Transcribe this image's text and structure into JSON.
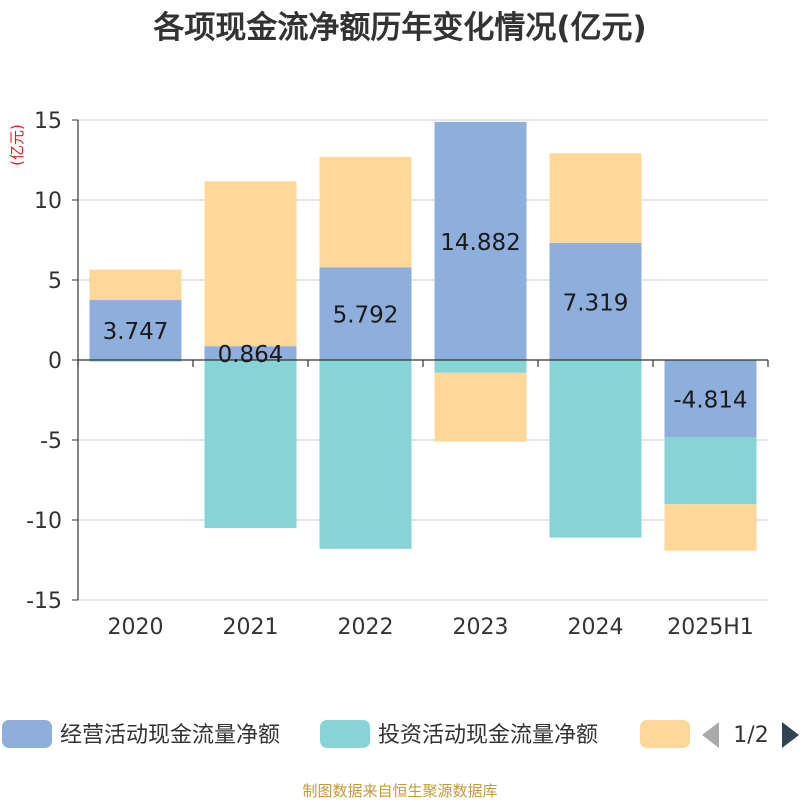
{
  "chart_data": {
    "type": "bar",
    "stacked": true,
    "title": "各项现金流净额历年变化情况(亿元)",
    "ylabel": "(亿元)",
    "categories": [
      "2020",
      "2021",
      "2022",
      "2023",
      "2024",
      "2025H1"
    ],
    "ylim": [
      -15,
      15
    ],
    "yticks": [
      15,
      10,
      5,
      0,
      -5,
      -10,
      -15
    ],
    "grid": true,
    "series": [
      {
        "name": "经营活动现金流量净额",
        "color": "#8eaedb",
        "values": [
          3.747,
          0.864,
          5.792,
          14.882,
          7.319,
          -4.814
        ],
        "labels": [
          "3.747",
          "0.864",
          "5.792",
          "14.882",
          "7.319",
          "-4.814"
        ]
      },
      {
        "name": "投资活动现金流量净额",
        "color": "#86d4d6",
        "values": [
          -0.1,
          -10.5,
          -11.8,
          -0.8,
          -11.1,
          -4.2
        ]
      },
      {
        "color": "#ffd899",
        "values": [
          1.9,
          10.3,
          6.9,
          -4.3,
          5.6,
          -2.9
        ]
      }
    ],
    "legend": {
      "position": "bottom",
      "pager": "1/2"
    },
    "source": "制图数据来自恒生聚源数据库"
  }
}
